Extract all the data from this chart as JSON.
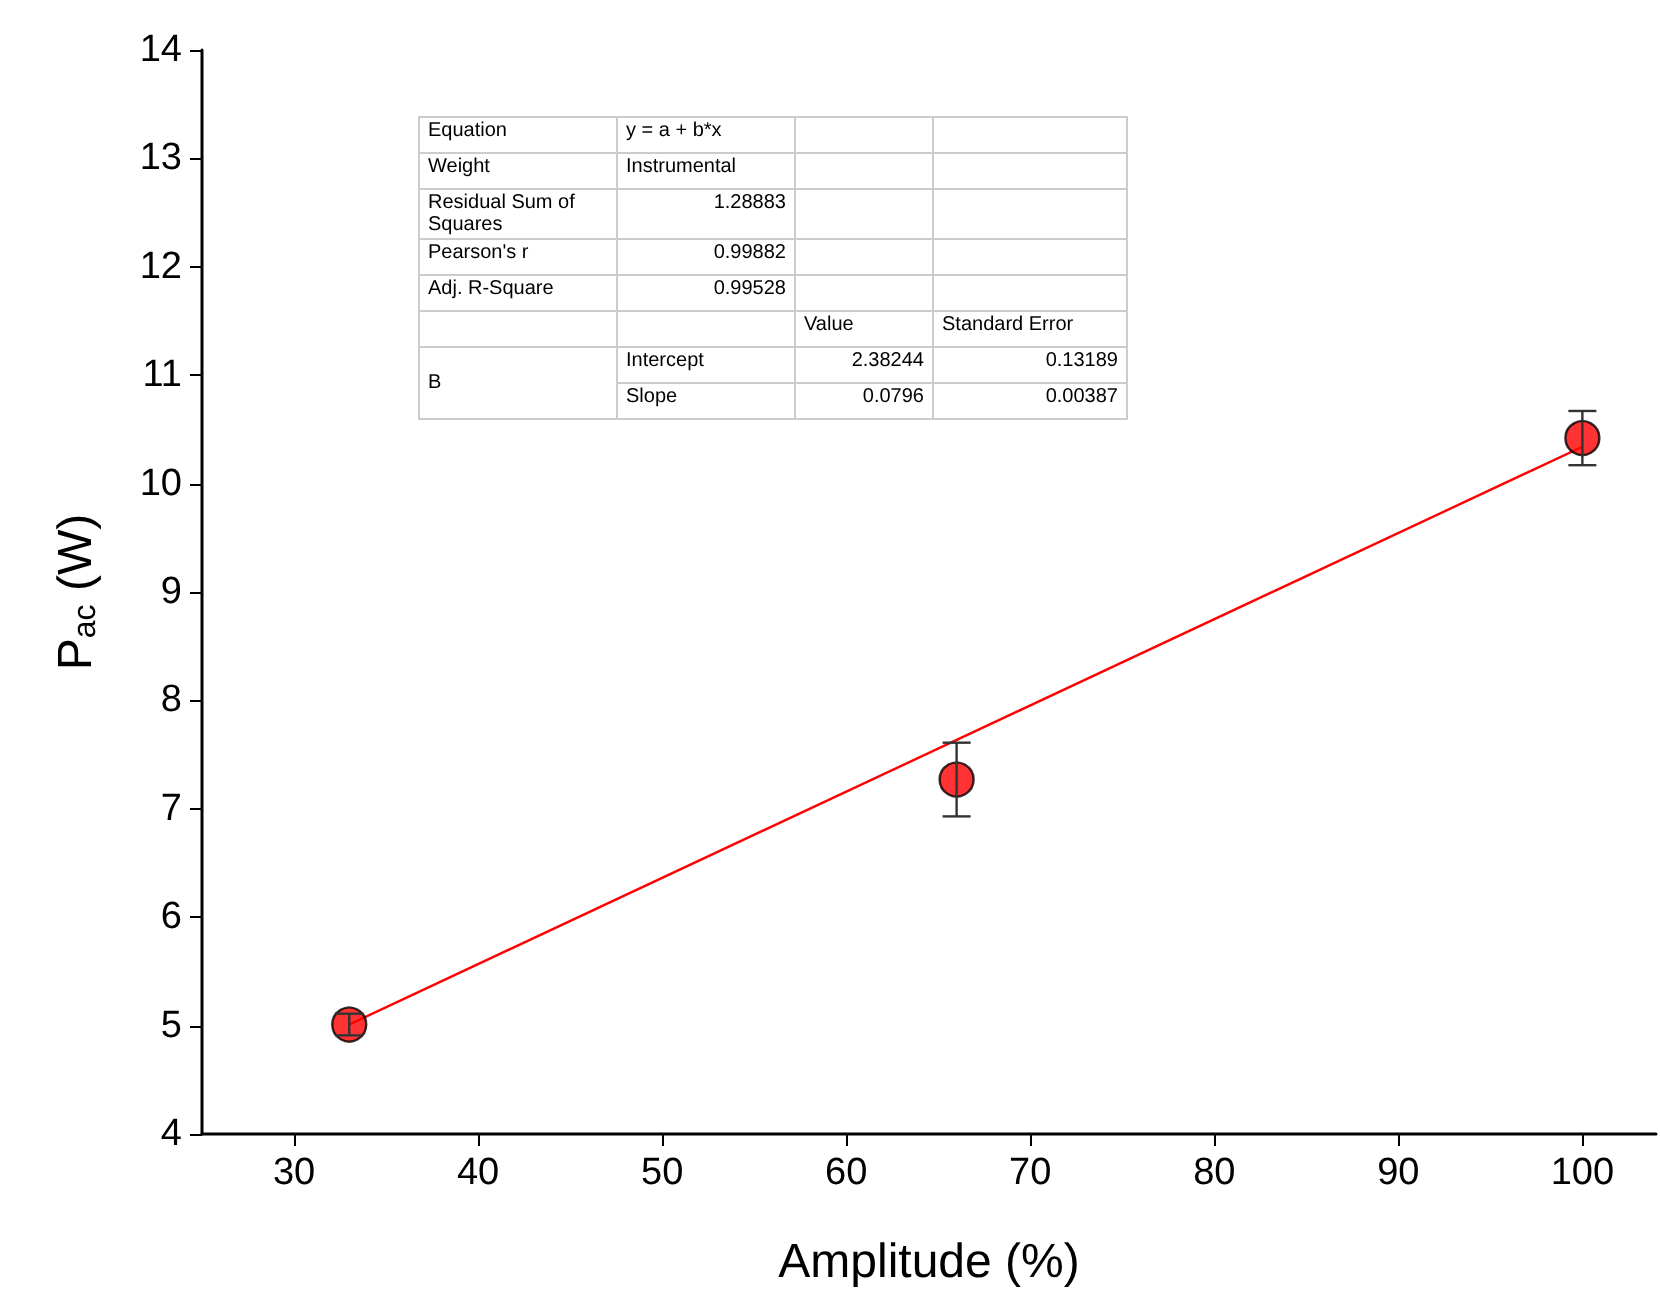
{
  "chart_data": {
    "type": "scatter",
    "xlabel": "Amplitude (%)",
    "ylabel": "P$_{ac}$ (W)",
    "xlim": [
      25,
      104
    ],
    "xticks": [
      30,
      40,
      50,
      60,
      70,
      80,
      90,
      100
    ],
    "ylim": [
      4,
      14
    ],
    "yticks": [
      4,
      5,
      6,
      7,
      8,
      9,
      10,
      11,
      12,
      13,
      14
    ],
    "grid": false,
    "marker": "circle",
    "series": [
      {
        "color": "#ff0000",
        "x": [
          33,
          66,
          100
        ],
        "values": [
          5.01,
          7.27,
          10.42
        ],
        "errors": [
          0.1,
          0.34,
          0.25
        ]
      },
      {
        "type": "line",
        "color": "#ff0000",
        "marker": "none",
        "line_style": "solid",
        "x": [
          33,
          100
        ],
        "values": [
          5.01,
          10.34
        ]
      }
    ],
    "annotations": [
      "Equation",
      "y = a + b*x",
      "Weight",
      "Instrumental",
      "Residual Sum of Squares",
      "1.28883",
      "Pearson's r",
      "0.99882",
      "Adj. R-Square",
      "0.99528",
      "Value",
      "Standard Error",
      "B",
      "Intercept",
      "2.38244",
      "0.13189",
      "Slope",
      "0.0796",
      "0.00387"
    ]
  }
}
